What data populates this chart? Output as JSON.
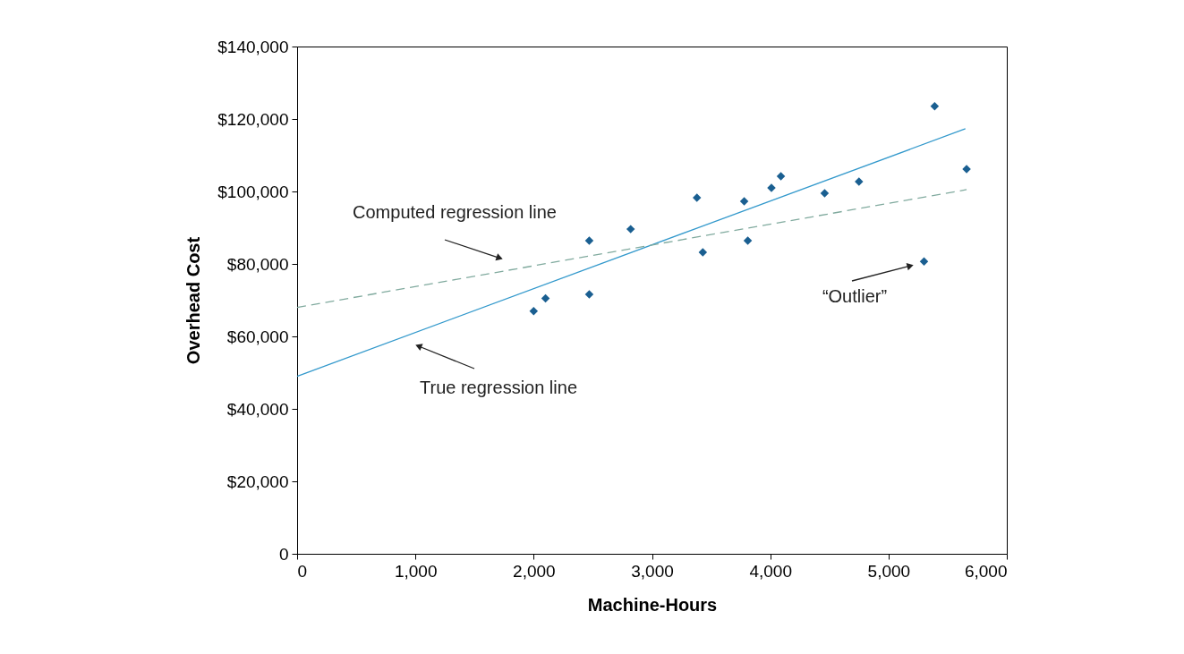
{
  "chart_data": {
    "type": "scatter",
    "xlabel": "Machine-Hours",
    "ylabel": "Overhead Cost",
    "xlim": [
      0,
      6000
    ],
    "ylim": [
      0,
      140000
    ],
    "xticks": [
      0,
      {
        "value": 1000,
        "label": "1,000"
      },
      {
        "value": 2000,
        "label": "2,000"
      },
      {
        "value": 3000,
        "label": "3,000"
      },
      {
        "value": 4000,
        "label": "4,000"
      },
      {
        "value": 5000,
        "label": "5,000"
      },
      {
        "value": 6000,
        "label": "6,000"
      }
    ],
    "yticks": [
      0,
      {
        "value": 20000,
        "label": "$20,000"
      },
      {
        "value": 40000,
        "label": "$40,000"
      },
      {
        "value": 60000,
        "label": "$60,000"
      },
      {
        "value": 80000,
        "label": "$80,000"
      },
      {
        "value": 100000,
        "label": "$100,000"
      },
      {
        "value": 120000,
        "label": "$120,000"
      },
      {
        "value": 140000,
        "label": "$140,000"
      }
    ],
    "grid": false,
    "series": [
      {
        "marker": "diamond",
        "color": "#1a5f91",
        "x": [
          2000,
          2100,
          2470,
          2470,
          2820,
          3380,
          3430,
          3780,
          3810,
          4010,
          4090,
          4460,
          4750,
          5300,
          5390,
          5660
        ],
        "values": [
          67000,
          70500,
          71600,
          86400,
          89600,
          98300,
          83200,
          97300,
          86400,
          101000,
          104200,
          99500,
          102700,
          80700,
          123500,
          106200
        ]
      },
      {
        "type": "line",
        "line_style": "solid",
        "color": "#3399cc",
        "x": [
          0,
          5650
        ],
        "values": [
          49000,
          117300
        ]
      },
      {
        "type": "line",
        "line_style": "dashed",
        "color": "#80aa9e",
        "x": [
          0,
          5660
        ],
        "values": [
          68000,
          100500
        ]
      }
    ],
    "annotations": [
      "Computed regression line",
      "True regression line",
      "“Outlier”"
    ]
  }
}
